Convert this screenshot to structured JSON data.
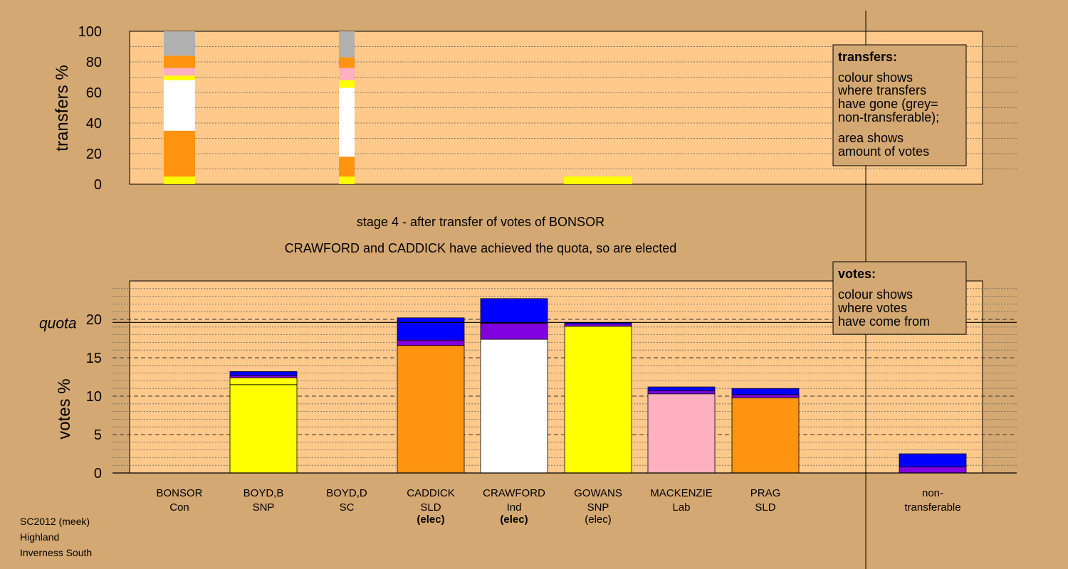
{
  "colors": {
    "background": "#d4a872",
    "panel": "#ffc98c",
    "yellow": "#ffff00",
    "orange": "#ff9410",
    "white": "#ffffff",
    "pink": "#ffb0c0",
    "grey": "#b0b0b0",
    "blue": "#0000ff",
    "purple": "#8000e0"
  },
  "headings": {
    "stage": "stage 4 - after transfer of votes of BONSOR",
    "elected_note": "CRAWFORD and CADDICK have achieved the quota, so are elected"
  },
  "footer": [
    "SC2012 (meek)",
    "Highland",
    "Inverness South"
  ],
  "legend_transfers": {
    "title": "transfers:",
    "lines": [
      "colour shows",
      "where transfers",
      "have gone (grey=",
      "non-transferable);",
      "area shows",
      "amount of votes"
    ]
  },
  "legend_votes": {
    "title": "votes:",
    "lines": [
      "colour shows",
      "where votes",
      "have come from"
    ]
  },
  "candidates": [
    {
      "name": "BONSOR",
      "party": "Con",
      "status": ""
    },
    {
      "name": "BOYD,B",
      "party": "SNP",
      "status": ""
    },
    {
      "name": "BOYD,D",
      "party": "SC",
      "status": ""
    },
    {
      "name": "CADDICK",
      "party": "SLD",
      "status": "(elec)"
    },
    {
      "name": "CRAWFORD",
      "party": "Ind",
      "status": "(elec)"
    },
    {
      "name": "GOWANS",
      "party": "SNP",
      "status": "(elec)"
    },
    {
      "name": "MACKENZIE",
      "party": "Lab",
      "status": ""
    },
    {
      "name": "PRAG",
      "party": "SLD",
      "status": ""
    },
    {
      "name": "non-transferable",
      "party": "",
      "status": ""
    }
  ],
  "chart_data": [
    {
      "type": "bar",
      "stacked": true,
      "ylabel": "transfers %",
      "ylim": [
        0,
        100
      ],
      "yticks": [
        0,
        20,
        40,
        60,
        80,
        100
      ],
      "bars": [
        {
          "candidate": "BONSOR",
          "segments": [
            {
              "color": "yellow",
              "from": 0,
              "to": 5
            },
            {
              "color": "orange",
              "from": 5,
              "to": 35
            },
            {
              "color": "white",
              "from": 35,
              "to": 68
            },
            {
              "color": "yellow",
              "from": 68,
              "to": 71
            },
            {
              "color": "pink",
              "from": 71,
              "to": 76
            },
            {
              "color": "orange",
              "from": 76,
              "to": 84
            },
            {
              "color": "grey",
              "from": 84,
              "to": 100
            }
          ]
        },
        {
          "candidate": "BOYD,D",
          "segments": [
            {
              "color": "yellow",
              "from": 0,
              "to": 5
            },
            {
              "color": "orange",
              "from": 5,
              "to": 18
            },
            {
              "color": "white",
              "from": 18,
              "to": 63
            },
            {
              "color": "yellow",
              "from": 63,
              "to": 68
            },
            {
              "color": "pink",
              "from": 68,
              "to": 76
            },
            {
              "color": "orange",
              "from": 76,
              "to": 83
            },
            {
              "color": "grey",
              "from": 83,
              "to": 100
            }
          ]
        },
        {
          "candidate": "GOWANS",
          "segments": [
            {
              "color": "yellow",
              "from": 0,
              "to": 5
            }
          ]
        }
      ]
    },
    {
      "type": "bar",
      "stacked": true,
      "ylabel": "votes %",
      "ylim": [
        0,
        25
      ],
      "yticks": [
        0,
        5,
        10,
        15,
        20
      ],
      "quota": 19.6,
      "quota_label": "quota",
      "bars": [
        {
          "candidate": "BOYD,B",
          "segments": [
            {
              "color": "yellow",
              "from": 0,
              "to": 11.5
            },
            {
              "color": "yellow",
              "from": 11.5,
              "to": 12.4
            },
            {
              "color": "purple",
              "from": 12.4,
              "to": 12.7
            },
            {
              "color": "blue",
              "from": 12.7,
              "to": 13.2
            }
          ]
        },
        {
          "candidate": "CADDICK",
          "segments": [
            {
              "color": "orange",
              "from": 0,
              "to": 16.6
            },
            {
              "color": "purple",
              "from": 16.6,
              "to": 17.3
            },
            {
              "color": "blue",
              "from": 17.3,
              "to": 20.2
            }
          ]
        },
        {
          "candidate": "CRAWFORD",
          "segments": [
            {
              "color": "white",
              "from": 0,
              "to": 17.4
            },
            {
              "color": "purple",
              "from": 17.4,
              "to": 19.5
            },
            {
              "color": "blue",
              "from": 19.5,
              "to": 22.7
            }
          ]
        },
        {
          "candidate": "GOWANS",
          "segments": [
            {
              "color": "yellow",
              "from": 0,
              "to": 19.1
            },
            {
              "color": "purple",
              "from": 19.1,
              "to": 19.4
            },
            {
              "color": "blue",
              "from": 19.4,
              "to": 19.6
            }
          ]
        },
        {
          "candidate": "MACKENZIE",
          "segments": [
            {
              "color": "pink",
              "from": 0,
              "to": 10.3
            },
            {
              "color": "purple",
              "from": 10.3,
              "to": 10.7
            },
            {
              "color": "blue",
              "from": 10.7,
              "to": 11.2
            }
          ]
        },
        {
          "candidate": "PRAG",
          "segments": [
            {
              "color": "orange",
              "from": 0,
              "to": 9.8
            },
            {
              "color": "purple",
              "from": 9.8,
              "to": 10.2
            },
            {
              "color": "blue",
              "from": 10.2,
              "to": 11.0
            }
          ]
        },
        {
          "candidate": "non-transferable",
          "segments": [
            {
              "color": "purple",
              "from": 0,
              "to": 0.8
            },
            {
              "color": "blue",
              "from": 0.8,
              "to": 2.5
            }
          ]
        }
      ]
    }
  ]
}
